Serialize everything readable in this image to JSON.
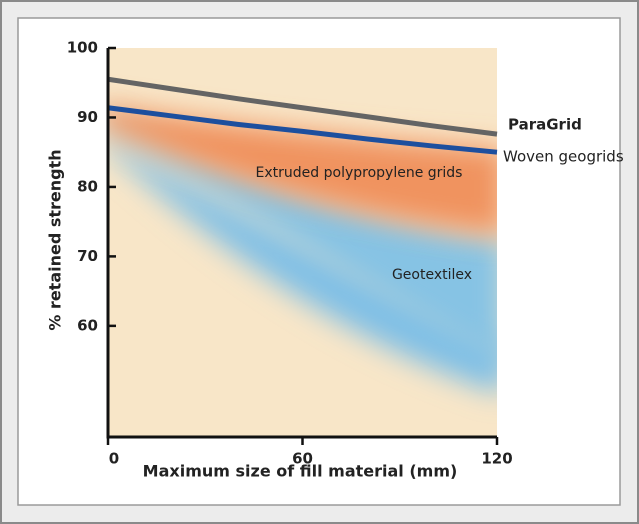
{
  "chart_data": {
    "type": "line",
    "x_label": "Maximum size of fill material (mm)",
    "y_label": "% retained strength",
    "x": [
      0,
      20,
      40,
      60,
      80,
      100,
      120
    ],
    "series": [
      {
        "name": "ParaGrid",
        "color": "#646464",
        "values": [
          95.5,
          94.1,
          92.7,
          91.4,
          90.1,
          88.8,
          87.6
        ]
      },
      {
        "name": "Woven geogrids",
        "color": "#1d4f9e",
        "values": [
          91.4,
          90.2,
          89.0,
          88.0,
          86.9,
          85.9,
          85.0
        ]
      }
    ],
    "annotations": [
      "Extruded polypropylene grids",
      "Geotextilex"
    ],
    "xlim": [
      0,
      120
    ],
    "xticks": [
      0,
      60,
      120
    ],
    "ylim": [
      44,
      100
    ],
    "yticks": [
      60,
      70,
      80,
      90,
      100
    ],
    "grid": false
  }
}
